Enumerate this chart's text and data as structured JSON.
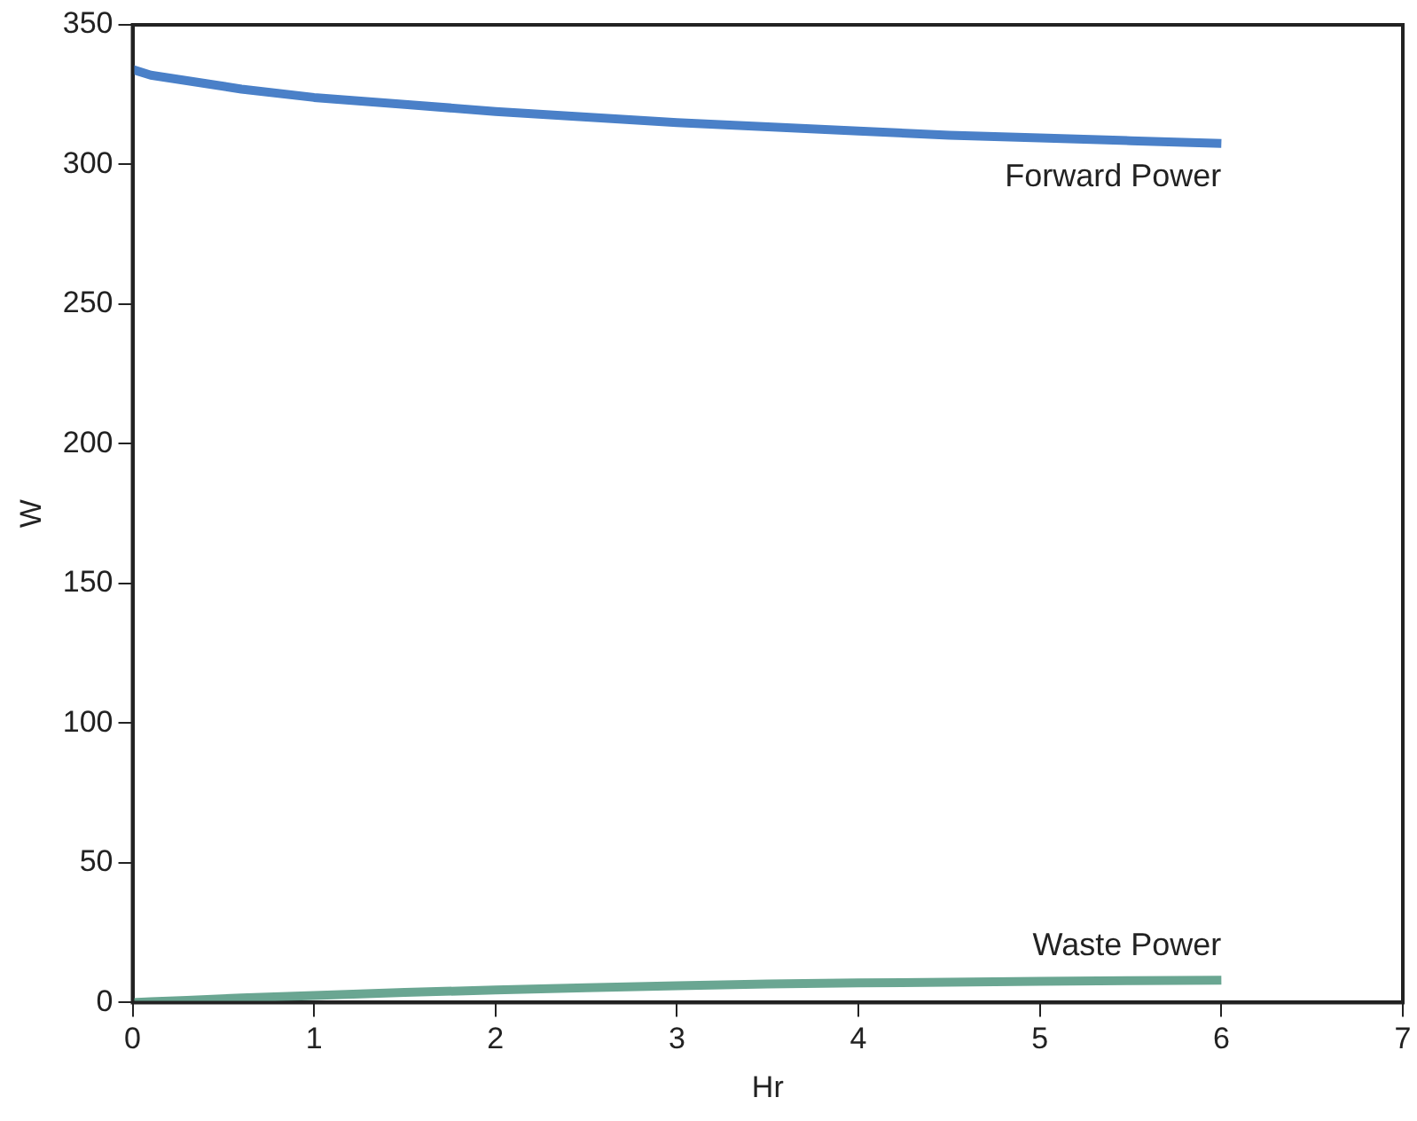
{
  "chart_data": {
    "type": "line",
    "xlabel": "Hr",
    "ylabel": "W",
    "xlim": [
      0,
      7
    ],
    "xticks": [
      0,
      1,
      2,
      3,
      4,
      5,
      6,
      7
    ],
    "ylim": [
      0,
      350
    ],
    "yticks": [
      0,
      50,
      100,
      150,
      200,
      250,
      300,
      350
    ],
    "grid": false,
    "legend": false,
    "marker": "none",
    "line_style": "solid",
    "x": [
      0,
      0.1,
      0.3,
      0.6,
      1,
      1.5,
      2,
      2.5,
      3,
      3.5,
      4,
      4.5,
      5,
      5.5,
      6
    ],
    "series": [
      {
        "name": "Forward Power",
        "color": "#4a80c8",
        "values": [
          334,
          332,
          330,
          327,
          324,
          321.5,
          319,
          317,
          315,
          313.5,
          312,
          310.5,
          309.5,
          308.5,
          307.5
        ]
      },
      {
        "name": "Waste Power",
        "color": "#6aa692",
        "values": [
          0,
          0.3,
          0.8,
          1.6,
          2.5,
          3.6,
          4.5,
          5.3,
          6,
          6.6,
          7,
          7.3,
          7.6,
          7.8,
          8
        ]
      }
    ]
  }
}
